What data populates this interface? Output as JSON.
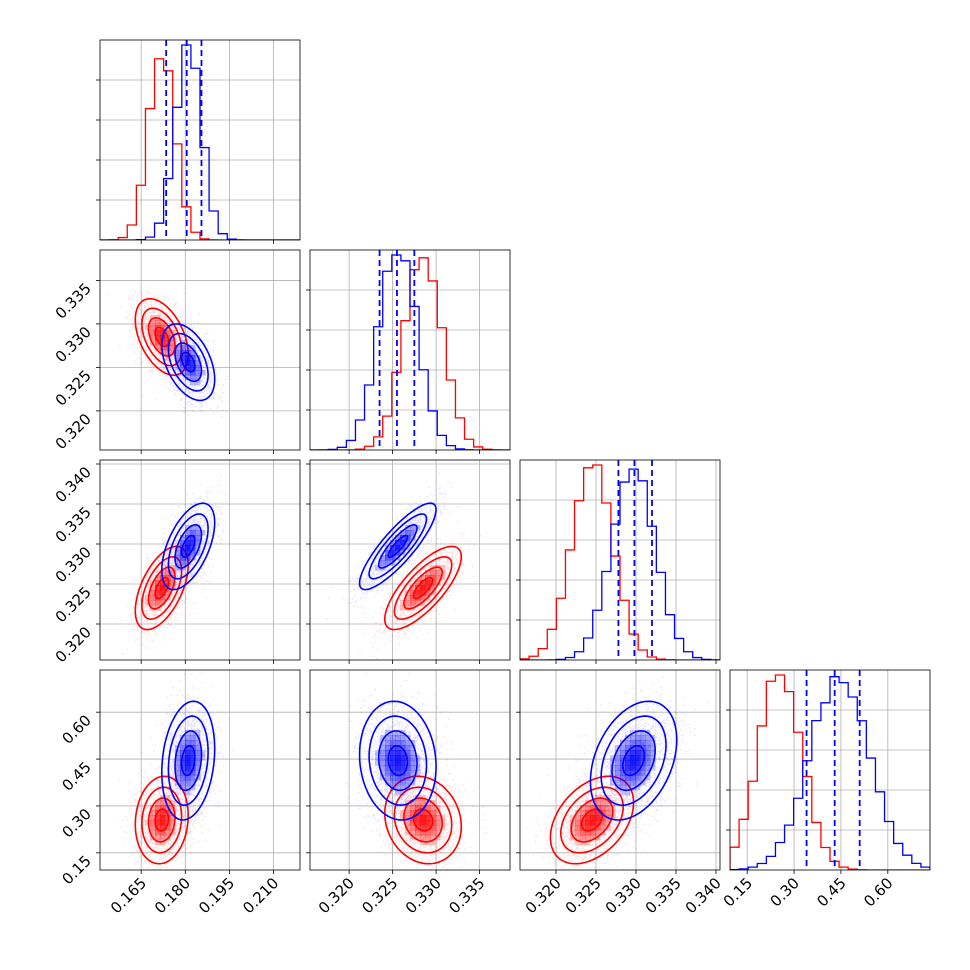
{
  "colors": {
    "a": "#ff0000",
    "b": "#0000ff",
    "grid": "#b0b0b0",
    "frame": "#000000"
  },
  "chart_data": {
    "type": "corner",
    "grid": true,
    "num_params": 4,
    "params": [
      {
        "range": [
          0.151,
          0.219
        ],
        "ticks": [
          0.165,
          0.18,
          0.195,
          0.21
        ],
        "tick_labels": [
          "0.165",
          "0.180",
          "0.195",
          "0.210"
        ]
      },
      {
        "range": [
          0.3155,
          0.3385
        ],
        "ticks": [
          0.32,
          0.325,
          0.33,
          0.335
        ],
        "tick_labels": [
          "0.320",
          "0.325",
          "0.330",
          "0.335"
        ]
      },
      {
        "range": [
          0.3155,
          0.3405
        ],
        "ticks": [
          0.32,
          0.325,
          0.33,
          0.335,
          0.34
        ],
        "tick_labels": [
          "0.320",
          "0.325",
          "0.330",
          "0.335",
          "0.340"
        ]
      },
      {
        "range": [
          0.095,
          0.735
        ],
        "ticks": [
          0.15,
          0.3,
          0.45,
          0.6
        ],
        "tick_labels": [
          "0.15",
          "0.30",
          "0.45",
          "0.60"
        ]
      }
    ],
    "series": [
      {
        "id": "a",
        "color": "#ff0000",
        "means": [
          0.172,
          0.3285,
          0.3245,
          0.255
        ],
        "sigmas": [
          0.0045,
          0.0022,
          0.0026,
          0.07
        ],
        "correlations": {
          "1_0": -0.45,
          "2_0": 0.55,
          "2_1": 0.75,
          "3_0": 0.1,
          "3_1": -0.15,
          "3_2": 0.4
        },
        "quantiles": []
      },
      {
        "id": "b",
        "color": "#0000ff",
        "means": [
          0.181,
          0.3256,
          0.3297,
          0.445
        ],
        "sigmas": [
          0.0045,
          0.0022,
          0.0027,
          0.095
        ],
        "correlations": {
          "1_0": -0.45,
          "2_0": 0.55,
          "2_1": 0.85,
          "3_0": 0.2,
          "3_1": -0.1,
          "3_2": 0.35
        },
        "quantiles": [
          [
            0.1735,
            0.1805,
            0.1855
          ],
          [
            0.3235,
            0.3255,
            0.3275
          ],
          [
            0.3278,
            0.3298,
            0.332
          ],
          [
            0.34,
            0.43,
            0.51
          ]
        ]
      }
    ]
  }
}
